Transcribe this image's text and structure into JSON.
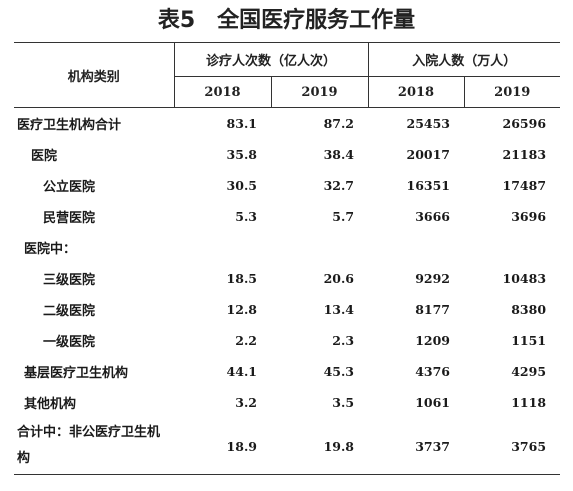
{
  "title": {
    "number": "表5",
    "text": "全国医疗服务工作量"
  },
  "table": {
    "category_header": "机构类别",
    "group_headers": [
      "诊疗人次数（亿人次）",
      "入院人数（万人）"
    ],
    "year_headers": [
      "2018",
      "2019",
      "2018",
      "2019"
    ],
    "rows": [
      {
        "label": "医疗卫生机构合计",
        "values": [
          "83.1",
          "87.2",
          "25453",
          "26596"
        ]
      },
      {
        "label": "医院",
        "values": [
          "35.8",
          "38.4",
          "20017",
          "21183"
        ]
      },
      {
        "label": "公立医院",
        "values": [
          "30.5",
          "32.7",
          "16351",
          "17487"
        ]
      },
      {
        "label": "民营医院",
        "values": [
          "5.3",
          "5.7",
          "3666",
          "3696"
        ]
      },
      {
        "label": "医院中：",
        "values": [
          "",
          "",
          "",
          ""
        ]
      },
      {
        "label": "三级医院",
        "values": [
          "18.5",
          "20.6",
          "9292",
          "10483"
        ]
      },
      {
        "label": "二级医院",
        "values": [
          "12.8",
          "13.4",
          "8177",
          "8380"
        ]
      },
      {
        "label": "一级医院",
        "values": [
          "2.2",
          "2.3",
          "1209",
          "1151"
        ]
      },
      {
        "label": "基层医疗卫生机构",
        "values": [
          "44.1",
          "45.3",
          "4376",
          "4295"
        ]
      },
      {
        "label": "其他机构",
        "values": [
          "3.2",
          "3.5",
          "1061",
          "1118"
        ]
      },
      {
        "label": "合计中：非公医疗卫生机构",
        "values": [
          "18.9",
          "19.8",
          "3737",
          "3765"
        ]
      }
    ]
  }
}
